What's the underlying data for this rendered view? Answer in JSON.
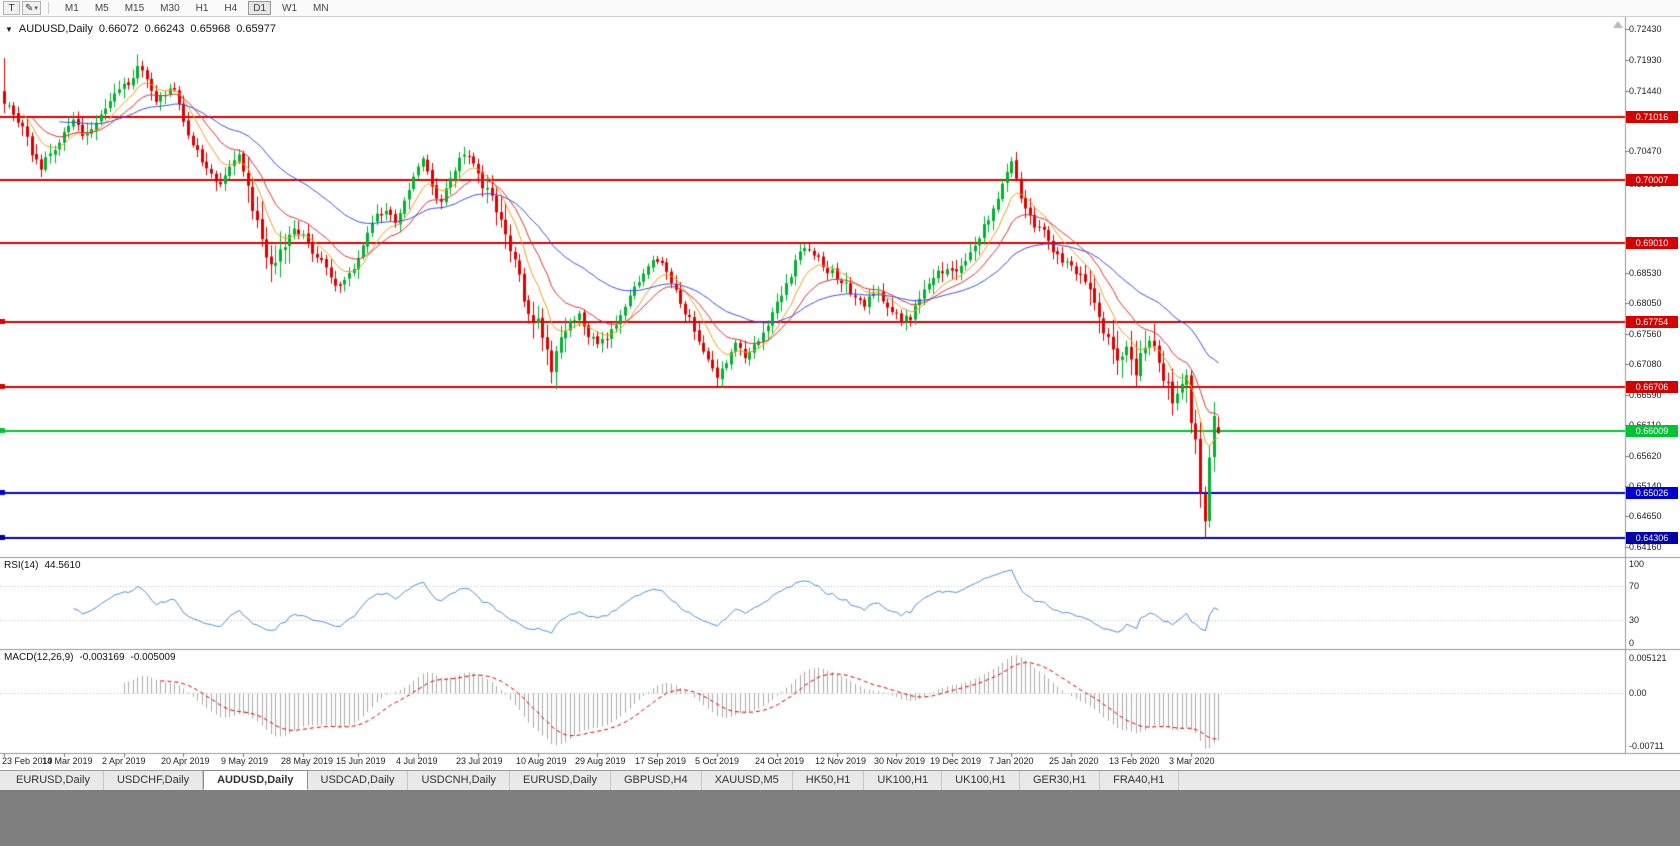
{
  "toolbar": {
    "pointer_tool": "T",
    "timeframes": [
      "M1",
      "M5",
      "M15",
      "M30",
      "H1",
      "H4",
      "D1",
      "W1",
      "MN"
    ],
    "active_timeframe": "D1"
  },
  "icons": {
    "pencil": "✎",
    "caret": "▾",
    "collapse": "▼",
    "scroll_up": "▲"
  },
  "chart": {
    "legend": {
      "symbol": "AUDUSD,Daily",
      "open": "0.66072",
      "high": "0.66243",
      "low": "0.65968",
      "close": "0.65977"
    },
    "price_axis": {
      "max": 0.7255,
      "min": 0.6405,
      "labels": [
        "0.72430",
        "0.71930",
        "0.71440",
        "0.70470",
        "0.69950",
        "0.68530",
        "0.68050",
        "0.67560",
        "0.67080",
        "0.66590",
        "0.66110",
        "0.65620",
        "0.65140",
        "0.64650",
        "0.64160"
      ]
    },
    "hlines": [
      {
        "price": 0.71016,
        "label": "0.71016",
        "color": "#d60000",
        "handle": false
      },
      {
        "price": 0.70007,
        "label": "0.70007",
        "color": "#d60000",
        "handle": false
      },
      {
        "price": 0.6901,
        "label": "0.69010",
        "color": "#d60000",
        "handle": false
      },
      {
        "price": 0.67754,
        "label": "0.67754",
        "color": "#d60000",
        "handle": true
      },
      {
        "price": 0.66706,
        "label": "0.66706",
        "color": "#d60000",
        "handle": true
      },
      {
        "price": 0.66009,
        "label": "0.66009",
        "color": "#00c432",
        "handle": true
      },
      {
        "price": 0.65026,
        "label": "0.65026",
        "color": "#0000d4",
        "handle": true
      },
      {
        "price": 0.64306,
        "label": "0.64306",
        "color": "#0000a8",
        "handle": true
      }
    ],
    "indicators": {
      "rsi": {
        "label": "RSI(14)",
        "value": "44.5610",
        "period": 14,
        "levels": [
          "100",
          "70",
          "30",
          "0"
        ]
      },
      "macd": {
        "label": "MACD(12,26,9)",
        "main": "-0.003169",
        "signal": "-0.005009",
        "axis": [
          "0.005121",
          "0.00",
          "-0.00711"
        ],
        "range": [
          -0.00711,
          0.005121
        ],
        "fast": 12,
        "slow": 26,
        "signal_period": 9
      }
    },
    "date_axis": [
      "23 Feb 2019",
      "14 Mar 2019",
      "2 Apr 2019",
      "20 Apr 2019",
      "9 May 2019",
      "28 May 2019",
      "15 Jun 2019",
      "4 Jul 2019",
      "23 Jul 2019",
      "10 Aug 2019",
      "29 Aug 2019",
      "17 Sep 2019",
      "5 Oct 2019",
      "24 Oct 2019",
      "12 Nov 2019",
      "30 Nov 2019",
      "19 Dec 2019",
      "7 Jan 2020",
      "25 Jan 2020",
      "13 Feb 2020",
      "3 Mar 2020"
    ]
  },
  "chart_data": {
    "type": "candlestick",
    "symbol": "AUDUSD",
    "timeframe": "Daily",
    "bars": 265,
    "anchors": [
      [
        0,
        0.7128
      ],
      [
        2,
        0.7102
      ],
      [
        4,
        0.7088
      ],
      [
        6,
        0.7044
      ],
      [
        8,
        0.7022
      ],
      [
        10,
        0.7042
      ],
      [
        13,
        0.7078
      ],
      [
        15,
        0.7102
      ],
      [
        17,
        0.7066
      ],
      [
        19,
        0.7082
      ],
      [
        21,
        0.7108
      ],
      [
        23,
        0.7128
      ],
      [
        25,
        0.7142
      ],
      [
        27,
        0.7158
      ],
      [
        29,
        0.718
      ],
      [
        31,
        0.7162
      ],
      [
        33,
        0.7128
      ],
      [
        35,
        0.714
      ],
      [
        37,
        0.7148
      ],
      [
        39,
        0.7092
      ],
      [
        41,
        0.7062
      ],
      [
        43,
        0.7028
      ],
      [
        45,
        0.7008
      ],
      [
        47,
        0.6996
      ],
      [
        49,
        0.7022
      ],
      [
        51,
        0.704
      ],
      [
        53,
        0.6992
      ],
      [
        55,
        0.693
      ],
      [
        57,
        0.688
      ],
      [
        59,
        0.6868
      ],
      [
        61,
        0.6902
      ],
      [
        63,
        0.6928
      ],
      [
        65,
        0.6912
      ],
      [
        67,
        0.6888
      ],
      [
        69,
        0.6872
      ],
      [
        71,
        0.6846
      ],
      [
        73,
        0.683
      ],
      [
        75,
        0.6852
      ],
      [
        77,
        0.6878
      ],
      [
        79,
        0.6918
      ],
      [
        81,
        0.6946
      ],
      [
        83,
        0.6952
      ],
      [
        85,
        0.6928
      ],
      [
        87,
        0.6972
      ],
      [
        89,
        0.7008
      ],
      [
        91,
        0.7036
      ],
      [
        93,
        0.6988
      ],
      [
        95,
        0.6962
      ],
      [
        97,
        0.7006
      ],
      [
        99,
        0.7032
      ],
      [
        101,
        0.7042
      ],
      [
        103,
        0.7006
      ],
      [
        105,
        0.6982
      ],
      [
        107,
        0.6952
      ],
      [
        109,
        0.6912
      ],
      [
        111,
        0.6868
      ],
      [
        113,
        0.6812
      ],
      [
        115,
        0.6782
      ],
      [
        117,
        0.6758
      ],
      [
        119,
        0.6698
      ],
      [
        121,
        0.6748
      ],
      [
        123,
        0.6772
      ],
      [
        125,
        0.6786
      ],
      [
        127,
        0.6756
      ],
      [
        129,
        0.6736
      ],
      [
        131,
        0.6752
      ],
      [
        133,
        0.6772
      ],
      [
        135,
        0.68
      ],
      [
        137,
        0.6828
      ],
      [
        139,
        0.6858
      ],
      [
        141,
        0.6876
      ],
      [
        143,
        0.6868
      ],
      [
        145,
        0.6842
      ],
      [
        147,
        0.6806
      ],
      [
        149,
        0.6778
      ],
      [
        151,
        0.6748
      ],
      [
        153,
        0.6716
      ],
      [
        155,
        0.6686
      ],
      [
        157,
        0.6712
      ],
      [
        159,
        0.6742
      ],
      [
        161,
        0.6722
      ],
      [
        163,
        0.6736
      ],
      [
        165,
        0.6758
      ],
      [
        167,
        0.6786
      ],
      [
        169,
        0.6822
      ],
      [
        171,
        0.6852
      ],
      [
        173,
        0.6886
      ],
      [
        175,
        0.6892
      ],
      [
        177,
        0.6876
      ],
      [
        179,
        0.6858
      ],
      [
        181,
        0.6848
      ],
      [
        183,
        0.6838
      ],
      [
        185,
        0.6812
      ],
      [
        187,
        0.6802
      ],
      [
        189,
        0.6822
      ],
      [
        191,
        0.6812
      ],
      [
        193,
        0.6792
      ],
      [
        195,
        0.6776
      ],
      [
        197,
        0.6782
      ],
      [
        199,
        0.6812
      ],
      [
        201,
        0.6838
      ],
      [
        203,
        0.6852
      ],
      [
        205,
        0.6862
      ],
      [
        207,
        0.6852
      ],
      [
        209,
        0.6872
      ],
      [
        211,
        0.6892
      ],
      [
        213,
        0.6928
      ],
      [
        215,
        0.6958
      ],
      [
        217,
        0.6992
      ],
      [
        219,
        0.7026
      ],
      [
        220,
        0.7002
      ],
      [
        222,
        0.6952
      ],
      [
        224,
        0.6928
      ],
      [
        226,
        0.6918
      ],
      [
        228,
        0.6892
      ],
      [
        230,
        0.6872
      ],
      [
        232,
        0.6862
      ],
      [
        234,
        0.6852
      ],
      [
        236,
        0.6822
      ],
      [
        238,
        0.6782
      ],
      [
        240,
        0.6748
      ],
      [
        242,
        0.6712
      ],
      [
        244,
        0.6742
      ],
      [
        246,
        0.6698
      ],
      [
        248,
        0.6732
      ],
      [
        250,
        0.6742
      ],
      [
        252,
        0.6692
      ],
      [
        254,
        0.6642
      ],
      [
        256,
        0.6668
      ],
      [
        257,
        0.6684
      ],
      [
        258,
        0.6622
      ],
      [
        259,
        0.6582
      ],
      [
        260,
        0.6512
      ],
      [
        261,
        0.6448
      ],
      [
        262,
        0.6562
      ],
      [
        263,
        0.6618
      ],
      [
        264,
        0.6598
      ]
    ],
    "specials": {
      "0": {
        "h": 0.7196
      },
      "29": {
        "h": 0.7202
      },
      "119": {
        "l": 0.6677
      },
      "156": {
        "l": 0.667
      },
      "261": {
        "l": 0.64306
      }
    },
    "final_bar": {
      "open": 0.66072,
      "high": 0.66243,
      "low": 0.65968,
      "close": 0.65977
    },
    "ma_periods": [
      8,
      16,
      40
    ]
  },
  "colors": {
    "up": "#00b22d",
    "down": "#dd0000",
    "ma_fast": "#efa020",
    "ma_mid": "#e03232",
    "ma_slow": "#3c50dc",
    "rsi": "#4f93d4",
    "macd_hist": "#ababab",
    "macd_signal": "#e00000",
    "grid_dotted": "#c4c4c4",
    "separator": "#999999"
  },
  "tabs": {
    "items": [
      "EURUSD,Daily",
      "USDCHF,Daily",
      "AUDUSD,Daily",
      "USDCAD,Daily",
      "USDCNH,Daily",
      "EURUSD,Daily",
      "GBPUSD,H4",
      "XAUUSD,M5",
      "HK50,H1",
      "UK100,H1",
      "UK100,H1",
      "GER30,H1",
      "FRA40,H1"
    ],
    "active_index": 2
  }
}
